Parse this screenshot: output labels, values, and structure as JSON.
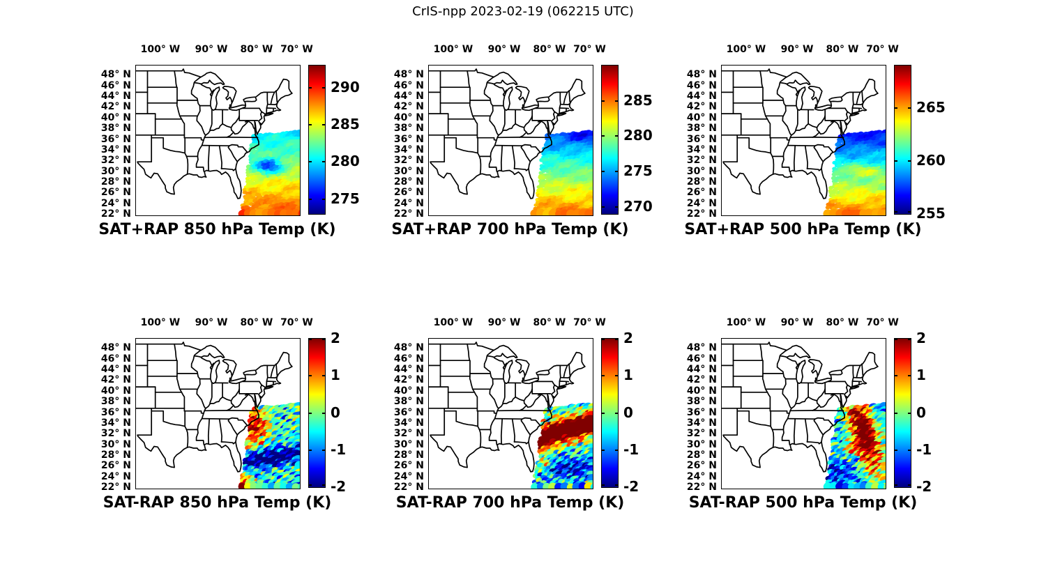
{
  "header": {
    "title": "CrIS-npp 2023-02-19 (062215 UTC)"
  },
  "axes": {
    "lon_ticks": [
      {
        "label": "100° W",
        "lon": -100
      },
      {
        "label": "90° W",
        "lon": -90
      },
      {
        "label": "80° W",
        "lon": -80
      },
      {
        "label": "70° W",
        "lon": -70
      }
    ],
    "lat_ticks": [
      {
        "label": "48° N",
        "lat": 48
      },
      {
        "label": "46° N",
        "lat": 46
      },
      {
        "label": "44° N",
        "lat": 44
      },
      {
        "label": "42° N",
        "lat": 42
      },
      {
        "label": "40° N",
        "lat": 40
      },
      {
        "label": "38° N",
        "lat": 38
      },
      {
        "label": "36° N",
        "lat": 36
      },
      {
        "label": "34° N",
        "lat": 34
      },
      {
        "label": "32° N",
        "lat": 32
      },
      {
        "label": "30° N",
        "lat": 30
      },
      {
        "label": "28° N",
        "lat": 28
      },
      {
        "label": "26° N",
        "lat": 26
      },
      {
        "label": "24° N",
        "lat": 24
      },
      {
        "label": "22° N",
        "lat": 22
      }
    ],
    "map_extent": {
      "lon_min": -107,
      "lon_max": -65,
      "lat_min": 22,
      "lat_max": 50
    }
  },
  "chart_data": [
    {
      "id": "sat-plus-rap-850",
      "type": "scatter",
      "title": "SAT+RAP 850 hPa Temp (K)",
      "quantity": "SAT+RAP temperature",
      "level_hPa": 850,
      "units": "K",
      "colormap": "jet",
      "colorbar": {
        "min": 273,
        "max": 293,
        "ticks": [
          290,
          285,
          280,
          275
        ]
      },
      "swath_summary": "CrIS swath over western Atlantic: ~288 K (orange) near 22-26N rising cooler northward to ~277 K (cyan); cold pocket ~275 K near 34N 73W."
    },
    {
      "id": "sat-plus-rap-700",
      "type": "scatter",
      "title": "SAT+RAP 700 hPa Temp (K)",
      "quantity": "SAT+RAP temperature",
      "level_hPa": 700,
      "units": "K",
      "colormap": "jet",
      "colorbar": {
        "min": 269,
        "max": 290,
        "ticks": [
          285,
          280,
          275,
          270
        ]
      },
      "swath_summary": "~283 K (orange-yellow) in the south grading to ~271 K (blue) north of 36N along the US east coast."
    },
    {
      "id": "sat-plus-rap-500",
      "type": "scatter",
      "title": "SAT+RAP 500 hPa Temp (K)",
      "quantity": "SAT+RAP temperature",
      "level_hPa": 500,
      "units": "K",
      "colormap": "jet",
      "colorbar": {
        "min": 255,
        "max": 269,
        "ticks": [
          265,
          260,
          255
        ]
      },
      "swath_summary": "~265 K (orange) near 22-28N with warm streaks ~30N, decreasing to ~256 K (dark blue) north of 38N."
    },
    {
      "id": "sat-minus-rap-850",
      "type": "scatter",
      "title": "SAT-RAP 850 hPa Temp (K)",
      "quantity": "SAT minus RAP temperature difference",
      "level_hPa": 850,
      "units": "K",
      "colormap": "jet",
      "colorbar": {
        "min": -2,
        "max": 2,
        "ticks": [
          2,
          1,
          0,
          -1,
          -2
        ]
      },
      "swath_summary": "Mottled ±2 K differences: warm (+1.5 K) patch along the coast 32-37N, cool (-1.5 K) band near 28-30N, mixed elsewhere."
    },
    {
      "id": "sat-minus-rap-700",
      "type": "scatter",
      "title": "SAT-RAP 700 hPa Temp (K)",
      "quantity": "SAT minus RAP temperature difference",
      "level_hPa": 700,
      "units": "K",
      "colormap": "jet",
      "colorbar": {
        "min": -2,
        "max": 2,
        "ticks": [
          2,
          1,
          0,
          -1,
          -2
        ]
      },
      "swath_summary": "Large +2 K (dark red) diagonal band 30-35N off the Carolinas; scattered -1 to -2 K (blue) south of it."
    },
    {
      "id": "sat-minus-rap-500",
      "type": "scatter",
      "title": "SAT-RAP 500 hPa Temp (K)",
      "quantity": "SAT minus RAP temperature difference",
      "level_hPa": 500,
      "units": "K",
      "colormap": "jet",
      "colorbar": {
        "min": -2,
        "max": 2,
        "ticks": [
          2,
          1,
          0,
          -1,
          -2
        ]
      },
      "swath_summary": "+2 K (red) band along the eastern swath edge 28-38N; mostly -0.5 to -1.5 K (cyan/blue) nearer the coast and south."
    }
  ]
}
